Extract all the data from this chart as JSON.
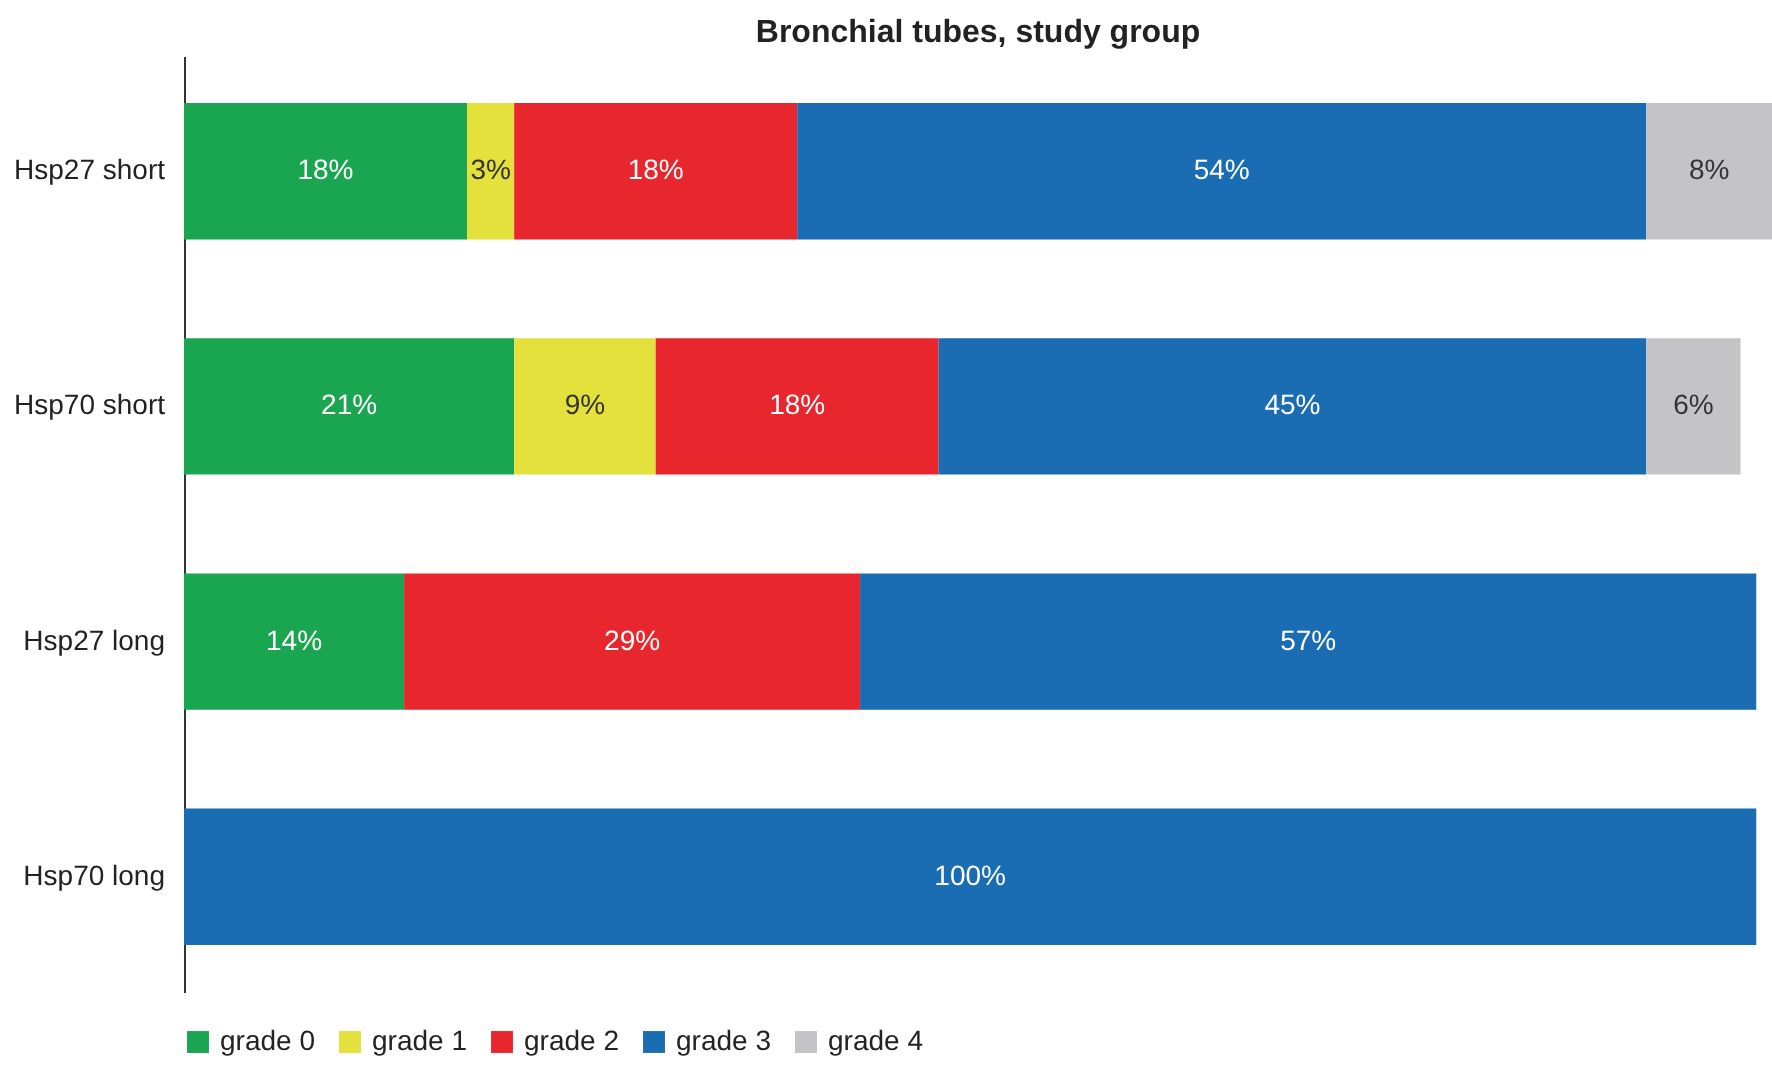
{
  "chart_data": {
    "type": "bar",
    "orientation": "horizontal",
    "stacked": true,
    "title": "Bronchial tubes, study group",
    "categories": [
      "Hsp27 short",
      "Hsp70 short",
      "Hsp27 long",
      "Hsp70 long"
    ],
    "legend": "bottom",
    "series": [
      {
        "name": "grade 0",
        "color": "#1aa550",
        "values": [
          18,
          21,
          14,
          null
        ],
        "value_labels": [
          "18%",
          "21%",
          "14%",
          null
        ]
      },
      {
        "name": "grade 1",
        "color": "#e4e03c",
        "values": [
          3,
          9,
          null,
          null
        ],
        "value_labels": [
          "3%",
          "9%",
          null,
          null
        ]
      },
      {
        "name": "grade 2",
        "color": "#e8262e",
        "values": [
          18,
          18,
          29,
          null
        ],
        "value_labels": [
          "18%",
          "18%",
          "29%",
          null
        ]
      },
      {
        "name": "grade 3",
        "color": "#1a6db3",
        "values": [
          54,
          45,
          57,
          100
        ],
        "value_labels": [
          "54%",
          "45%",
          "57%",
          "100%"
        ]
      },
      {
        "name": "grade 4",
        "color": "#c4c4c6",
        "values": [
          8,
          6,
          null,
          null
        ],
        "value_labels": [
          "8%",
          "6%",
          null,
          null
        ]
      }
    ]
  }
}
